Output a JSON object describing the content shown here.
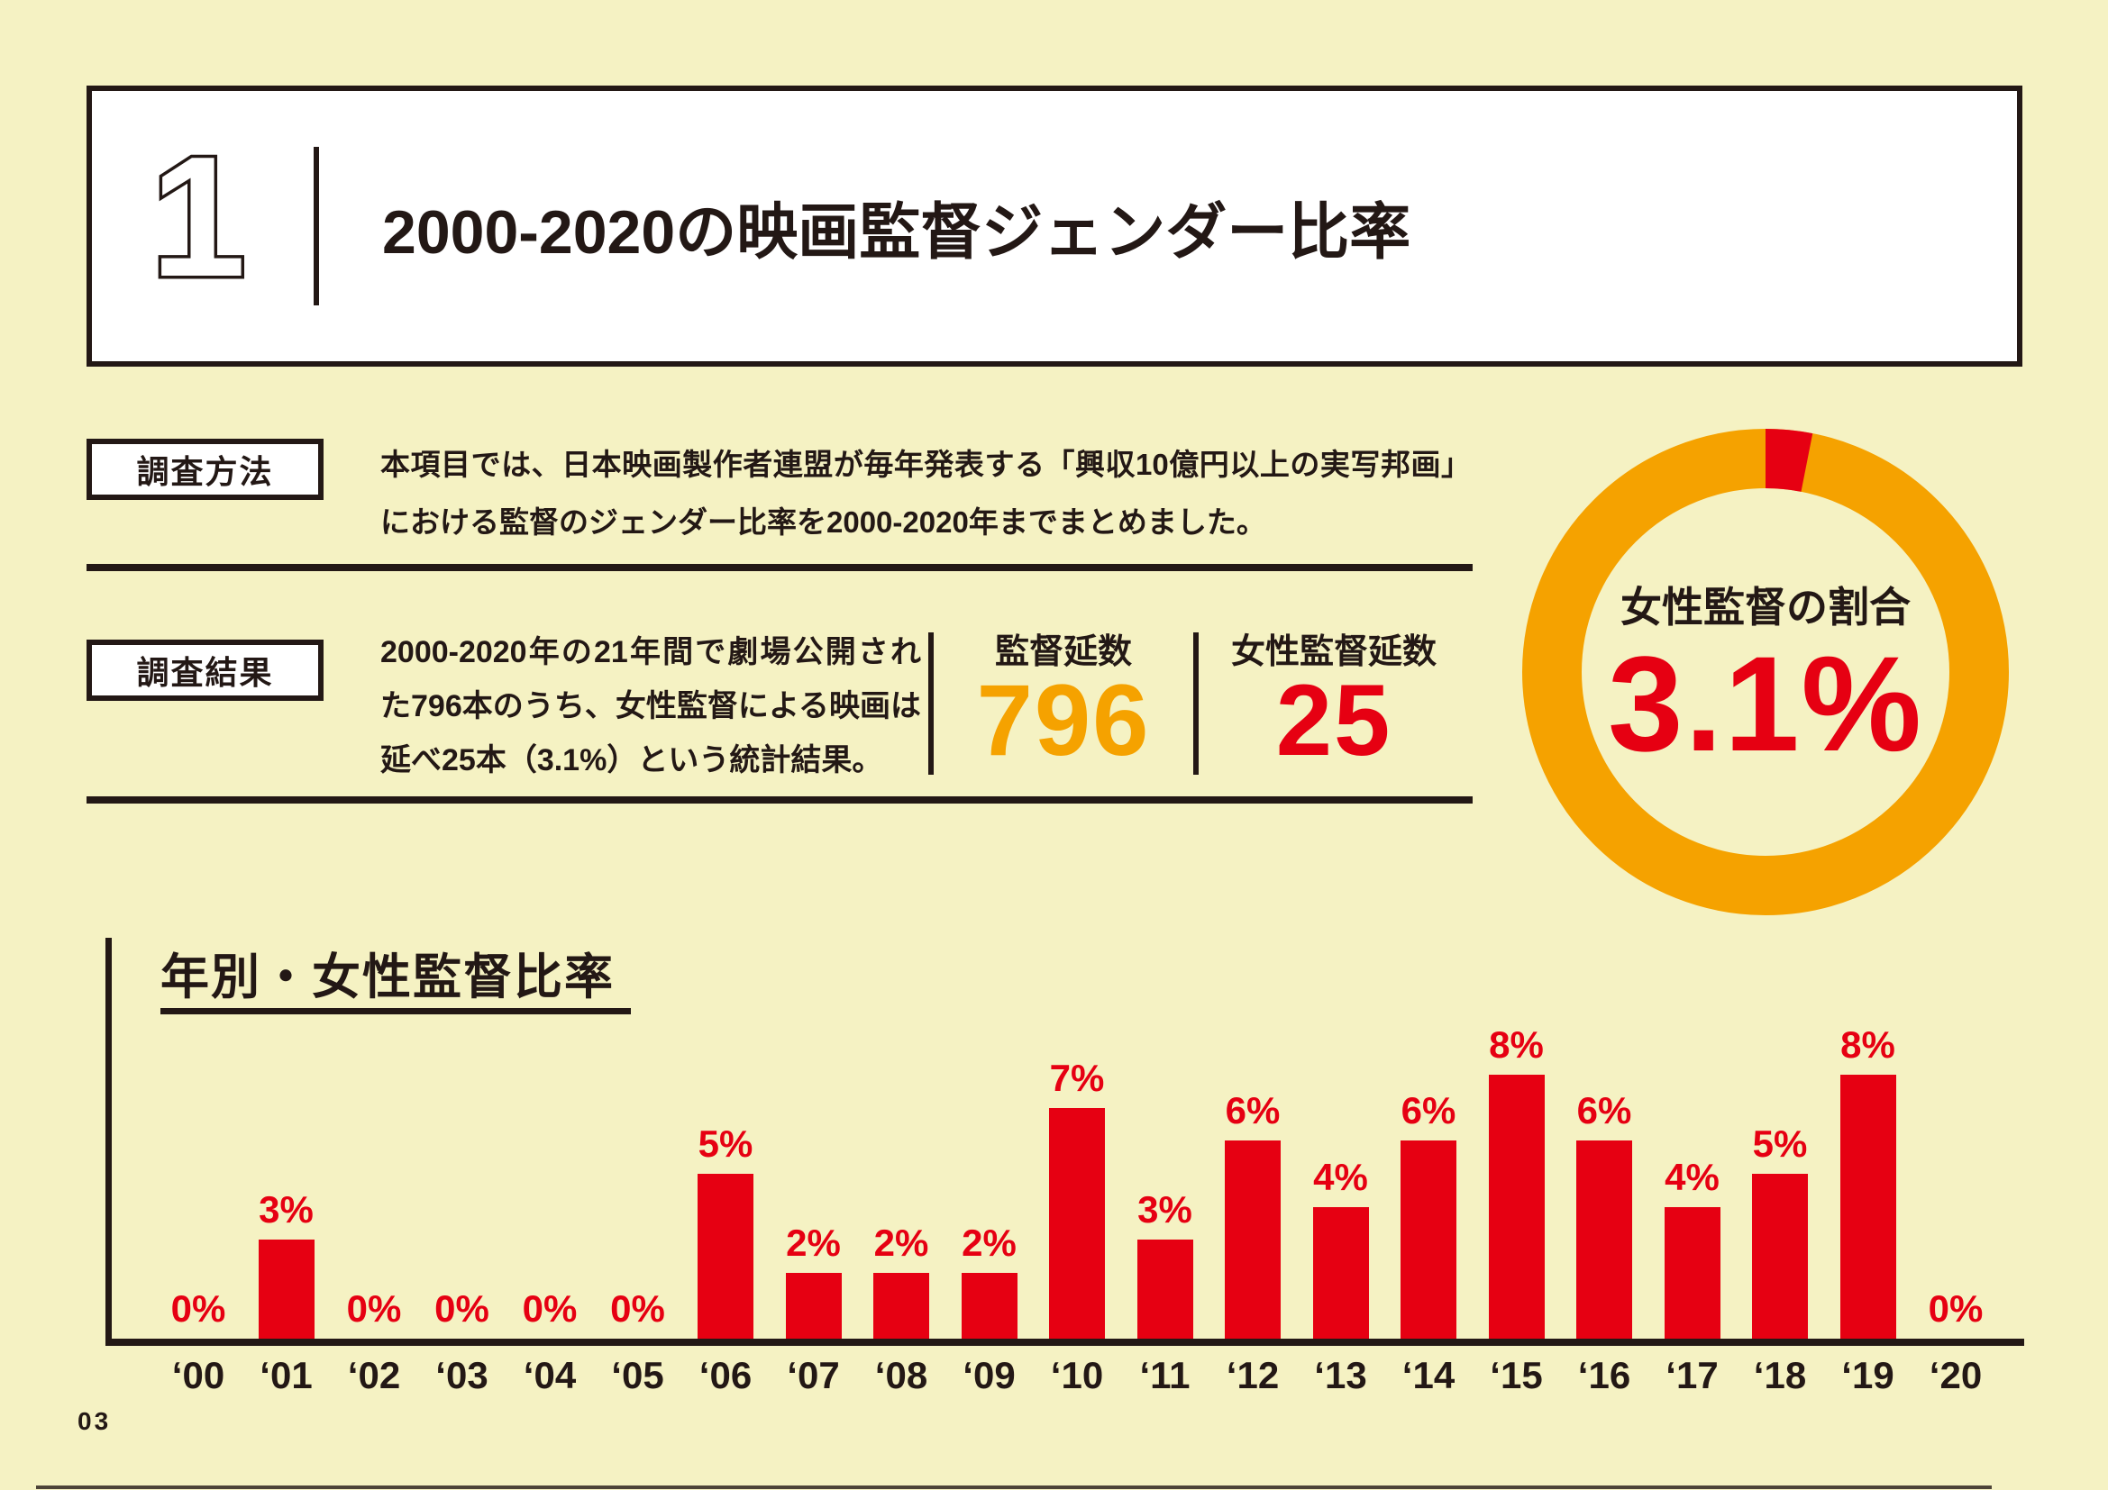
{
  "page": {
    "background_color": "#F5F2C3",
    "page_number": "03",
    "text_color": "#231815"
  },
  "header": {
    "section_number": "1",
    "title": "2000-2020の映画監督ジェンダー比率"
  },
  "method": {
    "label": "調査方法",
    "text": "本項目では、日本映画製作者連盟が毎年発表する「興収10億円以上の実写邦画」における監督のジェンダー比率を2000-2020年までまとめました。"
  },
  "result": {
    "label": "調査結果",
    "text": "2000-2020年の21年間で劇場公開された796本のうち、女性監督による映画は延べ25本（3.1%）という統計結果。",
    "stats": [
      {
        "label": "監督延数",
        "value": "796",
        "color": "#F5A200"
      },
      {
        "label": "女性監督延数",
        "value": "25",
        "color": "#E60012"
      }
    ]
  },
  "chart_data": [
    {
      "type": "pie",
      "subtype": "donut",
      "title": "女性監督の割合",
      "center_label": "女性監督の割合",
      "center_value": "3.1%",
      "values": [
        3.1,
        96.9
      ],
      "colors": [
        "#E60012",
        "#F5A200"
      ],
      "start_angle": "top",
      "legend": "none"
    },
    {
      "type": "bar",
      "title": "年別・女性監督比率",
      "categories": [
        "‘00",
        "‘01",
        "‘02",
        "‘03",
        "‘04",
        "‘05",
        "‘06",
        "‘07",
        "‘08",
        "‘09",
        "‘10",
        "‘11",
        "‘12",
        "‘13",
        "‘14",
        "‘15",
        "‘16",
        "‘17",
        "‘18",
        "‘19",
        "‘20"
      ],
      "values": [
        0,
        3,
        0,
        0,
        0,
        0,
        5,
        2,
        2,
        2,
        7,
        3,
        6,
        4,
        6,
        8,
        6,
        4,
        5,
        8,
        0
      ],
      "value_labels": [
        "0%",
        "3%",
        "0%",
        "0%",
        "0%",
        "0%",
        "5%",
        "2%",
        "2%",
        "2%",
        "7%",
        "3%",
        "6%",
        "4%",
        "6%",
        "8%",
        "6%",
        "4%",
        "5%",
        "8%",
        "0%"
      ],
      "unit": "%",
      "ylim": [
        0,
        8
      ],
      "grid": false,
      "bar_color": "#E60012",
      "value_label_color": "#E60012",
      "axis_color": "#231815"
    }
  ]
}
